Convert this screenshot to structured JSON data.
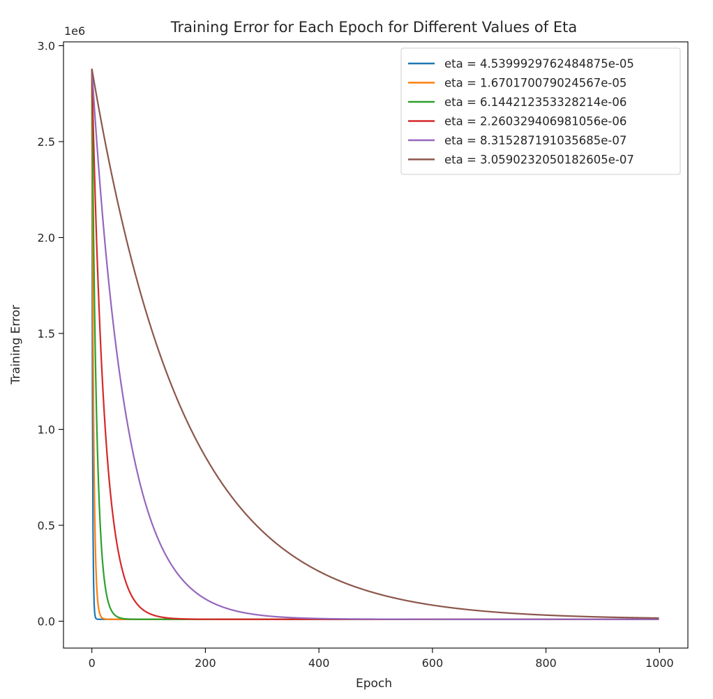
{
  "chart_data": {
    "type": "line",
    "title": "Training Error for Each Epoch for Different Values of Eta",
    "xlabel": "Epoch",
    "ylabel": "Training Error",
    "y_scale_label": "1e6",
    "xlim": [
      -50,
      1050
    ],
    "ylim": [
      -0.14,
      3.02
    ],
    "x_ticks": [
      0,
      200,
      400,
      600,
      800,
      1000
    ],
    "x_tick_labels": [
      "0",
      "200",
      "400",
      "600",
      "800",
      "1000"
    ],
    "y_ticks": [
      0.0,
      0.5,
      1.0,
      1.5,
      2.0,
      2.5,
      3.0
    ],
    "y_tick_labels": [
      "0.0",
      "0.5",
      "1.0",
      "1.5",
      "2.0",
      "2.5",
      "3.0"
    ],
    "grid": false,
    "legend_position": "top-right",
    "epochs": [
      0,
      999
    ],
    "initial_error": 2.88,
    "floor_error": 0.01,
    "series": [
      {
        "name": "eta = 4.5399929762484875e-05",
        "color": "#1f77b4",
        "decay_rate": 0.9
      },
      {
        "name": "eta = 1.670170079024567e-05",
        "color": "#ff7f0e",
        "decay_rate": 0.33
      },
      {
        "name": "eta = 6.144212353328214e-06",
        "color": "#2ca02c",
        "decay_rate": 0.12
      },
      {
        "name": "eta = 2.260329406981056e-06",
        "color": "#d62728",
        "decay_rate": 0.045
      },
      {
        "name": "eta = 8.315287191035685e-07",
        "color": "#9467bd",
        "decay_rate": 0.0165
      },
      {
        "name": "eta = 3.0590232050182605e-07",
        "color": "#8c564b",
        "decay_rate": 0.0061
      }
    ]
  }
}
